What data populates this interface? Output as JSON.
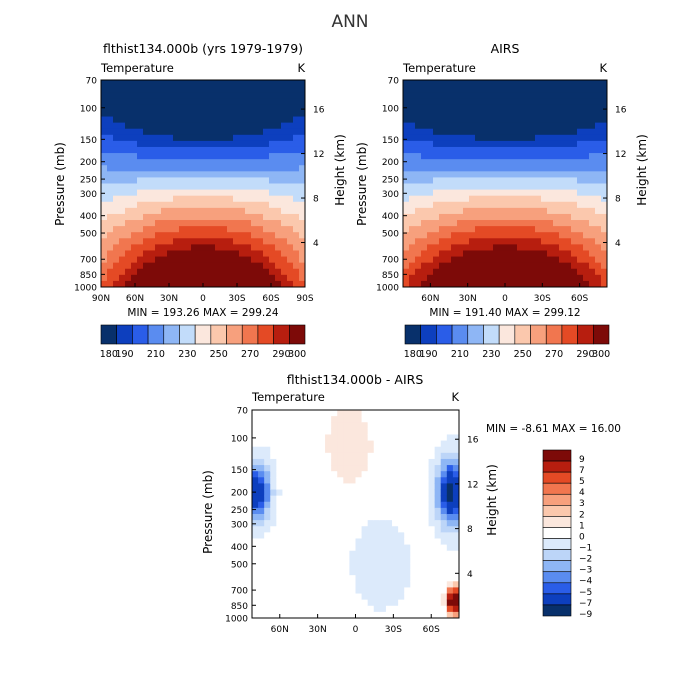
{
  "chart_data": {
    "type": "contour",
    "suptitle": "ANN",
    "panels": [
      {
        "id": "model",
        "title": "flthist134.000b (yrs 1979-1979)",
        "field_label": "Temperature",
        "units": "K",
        "xlabel": "",
        "ylabel": "Pressure (mb)",
        "y2label": "Height (km)",
        "x_ticks": [
          "90N",
          "60N",
          "30N",
          "0",
          "30S",
          "60S",
          "90S"
        ],
        "x_tick_values": [
          90,
          60,
          30,
          0,
          -30,
          -60,
          -90
        ],
        "xlim": [
          90,
          -90
        ],
        "pressure_ticks": [
          "70",
          "100",
          "150",
          "200",
          "250",
          "300",
          "400",
          "500",
          "700",
          "850",
          "1000"
        ],
        "pressure_values": [
          70,
          100,
          150,
          200,
          250,
          300,
          400,
          500,
          700,
          850,
          1000
        ],
        "ylim": [
          70,
          1000
        ],
        "height_ticks": [
          "4",
          "8",
          "12",
          "16"
        ],
        "height_values": [
          4,
          8,
          12,
          16
        ],
        "stats": "MIN = 193.26   MAX = 299.24",
        "min": 193.26,
        "max": 299.24,
        "levels": [
          180,
          190,
          200,
          210,
          220,
          230,
          240,
          250,
          260,
          270,
          280,
          290,
          300
        ],
        "colorbar_labels": [
          "180",
          "190",
          "210",
          "230",
          "250",
          "270",
          "290",
          "300"
        ],
        "colorbar_label_levels": [
          180,
          190,
          210,
          230,
          250,
          270,
          290,
          300
        ],
        "colors": [
          "#08306b",
          "#0d3fbe",
          "#2a5de8",
          "#5a8cf0",
          "#8eb6f5",
          "#c2dcfa",
          "#fbe7dd",
          "#fbc8ad",
          "#f7a07d",
          "#f1764f",
          "#e44a25",
          "#b71e0f",
          "#7d0a08"
        ]
      },
      {
        "id": "obs",
        "title": "AIRS",
        "field_label": "Temperature",
        "units": "K",
        "ylabel": "Pressure (mb)",
        "y2label": "Height (km)",
        "x_ticks": [
          "60N",
          "30N",
          "0",
          "30S",
          "60S"
        ],
        "x_tick_values": [
          60,
          30,
          0,
          -30,
          -60
        ],
        "xlim": [
          82,
          -82
        ],
        "pressure_ticks": [
          "70",
          "100",
          "150",
          "200",
          "250",
          "300",
          "400",
          "500",
          "700",
          "850",
          "1000"
        ],
        "pressure_values": [
          70,
          100,
          150,
          200,
          250,
          300,
          400,
          500,
          700,
          850,
          1000
        ],
        "ylim": [
          70,
          1000
        ],
        "height_ticks": [
          "4",
          "8",
          "12",
          "16"
        ],
        "height_values": [
          4,
          8,
          12,
          16
        ],
        "stats": "MIN = 191.40   MAX = 299.12",
        "min": 191.4,
        "max": 299.12,
        "levels": [
          180,
          190,
          200,
          210,
          220,
          230,
          240,
          250,
          260,
          270,
          280,
          290,
          300
        ],
        "colorbar_labels": [
          "180",
          "190",
          "210",
          "230",
          "250",
          "270",
          "290",
          "300"
        ],
        "colorbar_label_levels": [
          180,
          190,
          210,
          230,
          250,
          270,
          290,
          300
        ],
        "colors": [
          "#08306b",
          "#0d3fbe",
          "#2a5de8",
          "#5a8cf0",
          "#8eb6f5",
          "#c2dcfa",
          "#fbe7dd",
          "#fbc8ad",
          "#f7a07d",
          "#f1764f",
          "#e44a25",
          "#b71e0f",
          "#7d0a08"
        ]
      },
      {
        "id": "diff",
        "title": "flthist134.000b - AIRS",
        "field_label": "Temperature",
        "units": "K",
        "ylabel": "Pressure (mb)",
        "y2label": "Height (km)",
        "x_ticks": [
          "60N",
          "30N",
          "0",
          "30S",
          "60S"
        ],
        "x_tick_values": [
          60,
          30,
          0,
          -30,
          -60
        ],
        "xlim": [
          82,
          -82
        ],
        "pressure_ticks": [
          "70",
          "100",
          "150",
          "200",
          "250",
          "300",
          "400",
          "500",
          "700",
          "850",
          "1000"
        ],
        "pressure_values": [
          70,
          100,
          150,
          200,
          250,
          300,
          400,
          500,
          700,
          850,
          1000
        ],
        "ylim": [
          70,
          1000
        ],
        "height_ticks": [
          "4",
          "8",
          "12",
          "16"
        ],
        "height_values": [
          4,
          8,
          12,
          16
        ],
        "stats": "MIN =  -8.61   MAX =  16.00",
        "min": -8.61,
        "max": 16.0,
        "levels": [
          -9,
          -7,
          -5,
          -4,
          -3,
          -2,
          -1,
          0,
          1,
          2,
          3,
          4,
          5,
          7,
          9
        ],
        "colorbar_labels": [
          "9",
          "7",
          "5",
          "4",
          "3",
          "2",
          "1",
          "0",
          "−1",
          "−2",
          "−3",
          "−4",
          "−5",
          "−7",
          "−9"
        ],
        "colors": [
          "#7d0a08",
          "#b71e0f",
          "#e44a25",
          "#f1764f",
          "#f7a07d",
          "#fbc8ad",
          "#fbe7dd",
          "#ffffff",
          "#dceafb",
          "#bcd5f8",
          "#8eb6f5",
          "#5a8cf0",
          "#2a5de8",
          "#0d3fbe",
          "#08306b"
        ]
      }
    ]
  }
}
